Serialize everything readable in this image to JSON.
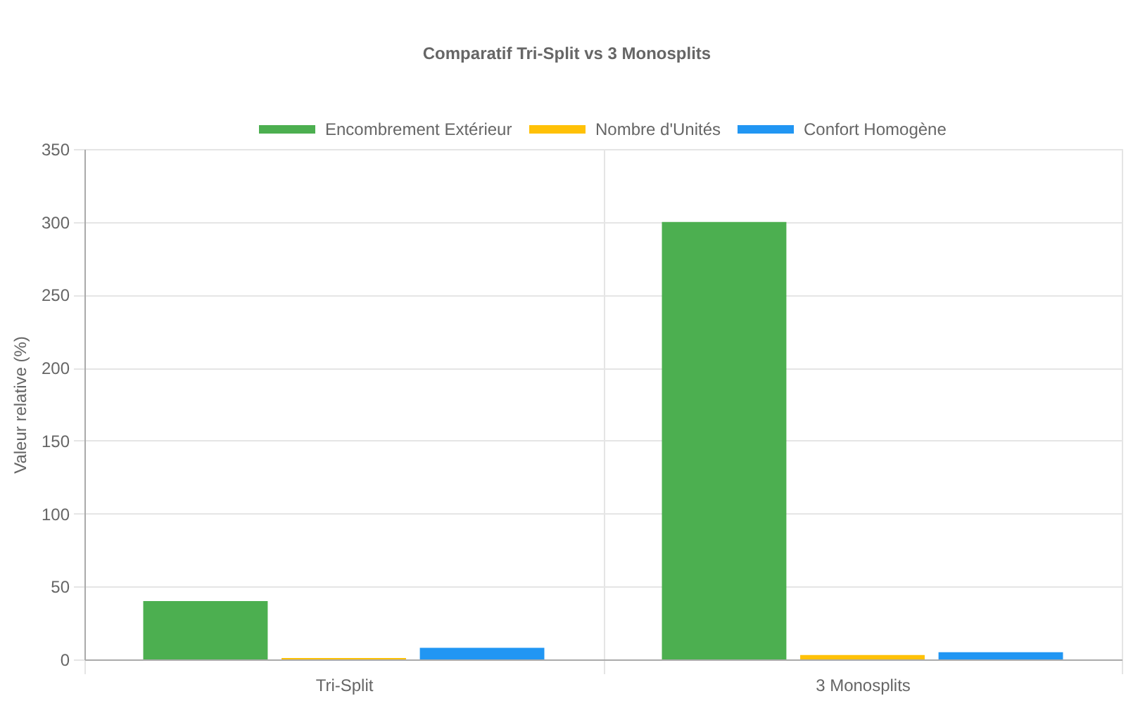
{
  "chart_data": {
    "type": "bar",
    "title": "Comparatif Tri-Split vs 3 Monosplits",
    "ylabel": "Valeur relative (%)",
    "categories": [
      "Tri-Split",
      "3 Monosplits"
    ],
    "series": [
      {
        "name": "Encombrement Extérieur",
        "color": "#4caf50",
        "values": [
          40,
          300
        ]
      },
      {
        "name": "Nombre d'Unités",
        "color": "#ffc107",
        "values": [
          1,
          3
        ]
      },
      {
        "name": "Confort Homogène",
        "color": "#2196f3",
        "values": [
          8,
          5
        ]
      }
    ],
    "ylim": [
      0,
      350
    ],
    "yticks": [
      0,
      50,
      100,
      150,
      200,
      250,
      300,
      350
    ],
    "grid": true,
    "legend": "top"
  }
}
